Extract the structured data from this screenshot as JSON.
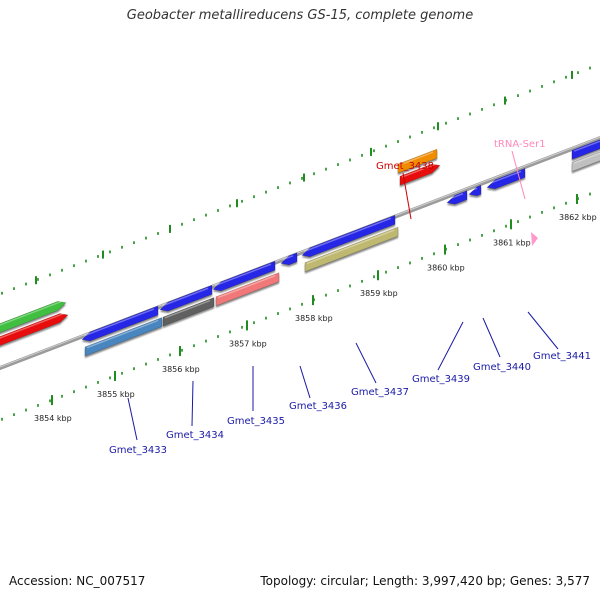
{
  "title": "Geobacter metallireducens GS-15, complete genome",
  "footer": {
    "accession": "Accession: NC_007517",
    "summary": "Topology: circular; Length: 3,997,420 bp; Genes: 3,577"
  },
  "colors": {
    "backbone": "#8a8a8a",
    "tick": "#1e8c1e",
    "label_default": "#1a1aa6"
  },
  "ticks": [
    {
      "label": "3854 kbp"
    },
    {
      "label": "3855 kbp"
    },
    {
      "label": "3856 kbp"
    },
    {
      "label": "3857 kbp"
    },
    {
      "label": "3858 kbp"
    },
    {
      "label": "3859 kbp"
    },
    {
      "label": "3860 kbp"
    },
    {
      "label": "3861 kbp"
    },
    {
      "label": "3862 kbp"
    }
  ],
  "features": [
    {
      "name": "green-gene",
      "color": "#3fbf3f"
    },
    {
      "name": "red-gene",
      "color": "#e81010"
    },
    {
      "name": "Gmet_3433-a",
      "color": "#2828e6"
    },
    {
      "name": "Gmet_3433-b",
      "color": "#4a86c0"
    },
    {
      "name": "Gmet_3434-a",
      "color": "#2828e6"
    },
    {
      "name": "Gmet_3434-b",
      "color": "#606060"
    },
    {
      "name": "Gmet_3435-a",
      "color": "#2828e6"
    },
    {
      "name": "Gmet_3435-b",
      "color": "#f07878"
    },
    {
      "name": "Gmet_3436",
      "color": "#2828e6"
    },
    {
      "name": "Gmet_3437-a",
      "color": "#2828e6"
    },
    {
      "name": "Gmet_3437-b",
      "color": "#bfb870"
    },
    {
      "name": "Gmet_3438-a",
      "color": "#f08c00"
    },
    {
      "name": "Gmet_3438-b",
      "color": "#e81010"
    },
    {
      "name": "Gmet_3439",
      "color": "#2828e6"
    },
    {
      "name": "Gmet_3440",
      "color": "#2828e6"
    },
    {
      "name": "Gmet_3441",
      "color": "#2828e6"
    },
    {
      "name": "tRNA-Ser1",
      "color": "#ff99cc"
    },
    {
      "name": "right-blue-gene",
      "color": "#2828e6"
    },
    {
      "name": "right-gray-gene",
      "color": "#c0c0c0"
    }
  ],
  "labels": [
    {
      "text": "Gmet_3433",
      "color": "#1a1aa6"
    },
    {
      "text": "Gmet_3434",
      "color": "#1a1aa6"
    },
    {
      "text": "Gmet_3435",
      "color": "#1a1aa6"
    },
    {
      "text": "Gmet_3436",
      "color": "#1a1aa6"
    },
    {
      "text": "Gmet_3437",
      "color": "#1a1aa6"
    },
    {
      "text": "Gmet_3438",
      "color": "#cc0000"
    },
    {
      "text": "Gmet_3439",
      "color": "#1a1aa6"
    },
    {
      "text": "Gmet_3440",
      "color": "#1a1aa6"
    },
    {
      "text": "Gmet_3441",
      "color": "#1a1aa6"
    },
    {
      "text": "tRNA-Ser1",
      "color": "#ff88bb"
    }
  ]
}
